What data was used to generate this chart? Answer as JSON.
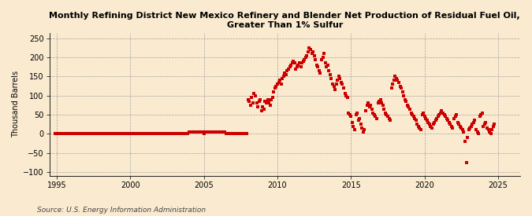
{
  "title": "Monthly Refining District New Mexico Refinery and Blender Net Production of Residual Fuel Oil,\nGreater Than 1% Sulfur",
  "ylabel": "Thousand Barrels",
  "source": "Source: U.S. Energy Information Administration",
  "xlim": [
    1994.5,
    2026.5
  ],
  "ylim": [
    -110,
    265
  ],
  "yticks": [
    -100,
    -50,
    0,
    50,
    100,
    150,
    200,
    250
  ],
  "xticks": [
    1995,
    2000,
    2005,
    2010,
    2015,
    2020,
    2025
  ],
  "background_color": "#faebd0",
  "marker_color": "#cc0000",
  "line_color": "#cc0000",
  "data": [
    [
      1994.917,
      0
    ],
    [
      1995.0,
      0
    ],
    [
      1995.083,
      0
    ],
    [
      1995.167,
      0
    ],
    [
      1995.25,
      0
    ],
    [
      1995.333,
      0
    ],
    [
      1995.417,
      0
    ],
    [
      1995.5,
      0
    ],
    [
      1995.583,
      0
    ],
    [
      1995.667,
      0
    ],
    [
      1995.75,
      0
    ],
    [
      1995.833,
      0
    ],
    [
      1995.917,
      0
    ],
    [
      1996.0,
      0
    ],
    [
      1996.083,
      0
    ],
    [
      1996.167,
      0
    ],
    [
      1996.25,
      0
    ],
    [
      1996.333,
      0
    ],
    [
      1996.417,
      0
    ],
    [
      1996.5,
      0
    ],
    [
      1996.583,
      0
    ],
    [
      1996.667,
      0
    ],
    [
      1996.75,
      0
    ],
    [
      1996.833,
      0
    ],
    [
      1996.917,
      0
    ],
    [
      1997.0,
      0
    ],
    [
      1997.083,
      0
    ],
    [
      1997.167,
      0
    ],
    [
      1997.25,
      0
    ],
    [
      1997.333,
      0
    ],
    [
      1997.417,
      0
    ],
    [
      1997.5,
      0
    ],
    [
      1997.583,
      0
    ],
    [
      1997.667,
      0
    ],
    [
      1997.75,
      0
    ],
    [
      1997.833,
      0
    ],
    [
      1997.917,
      0
    ],
    [
      1998.0,
      0
    ],
    [
      1998.083,
      0
    ],
    [
      1998.167,
      0
    ],
    [
      1998.25,
      0
    ],
    [
      1998.333,
      0
    ],
    [
      1998.417,
      0
    ],
    [
      1998.5,
      0
    ],
    [
      1998.583,
      0
    ],
    [
      1998.667,
      0
    ],
    [
      1998.75,
      0
    ],
    [
      1998.833,
      0
    ],
    [
      1998.917,
      0
    ],
    [
      1999.0,
      0
    ],
    [
      1999.083,
      0
    ],
    [
      1999.167,
      0
    ],
    [
      1999.25,
      0
    ],
    [
      1999.333,
      0
    ],
    [
      1999.417,
      0
    ],
    [
      1999.5,
      0
    ],
    [
      1999.583,
      0
    ],
    [
      1999.667,
      0
    ],
    [
      1999.75,
      0
    ],
    [
      1999.833,
      0
    ],
    [
      1999.917,
      0
    ],
    [
      2000.0,
      0
    ],
    [
      2000.083,
      0
    ],
    [
      2000.167,
      0
    ],
    [
      2000.25,
      0
    ],
    [
      2000.333,
      0
    ],
    [
      2000.417,
      0
    ],
    [
      2000.5,
      0
    ],
    [
      2000.583,
      0
    ],
    [
      2000.667,
      0
    ],
    [
      2000.75,
      0
    ],
    [
      2000.833,
      0
    ],
    [
      2000.917,
      0
    ],
    [
      2001.0,
      0
    ],
    [
      2001.083,
      0
    ],
    [
      2001.167,
      0
    ],
    [
      2001.25,
      0
    ],
    [
      2001.333,
      0
    ],
    [
      2001.417,
      0
    ],
    [
      2001.5,
      0
    ],
    [
      2001.583,
      0
    ],
    [
      2001.667,
      0
    ],
    [
      2001.75,
      0
    ],
    [
      2001.833,
      0
    ],
    [
      2001.917,
      0
    ],
    [
      2002.0,
      0
    ],
    [
      2002.083,
      0
    ],
    [
      2002.167,
      0
    ],
    [
      2002.25,
      0
    ],
    [
      2002.333,
      0
    ],
    [
      2002.417,
      0
    ],
    [
      2002.5,
      0
    ],
    [
      2002.583,
      0
    ],
    [
      2002.667,
      0
    ],
    [
      2002.75,
      0
    ],
    [
      2002.833,
      0
    ],
    [
      2002.917,
      0
    ],
    [
      2003.0,
      0
    ],
    [
      2003.083,
      0
    ],
    [
      2003.167,
      0
    ],
    [
      2003.25,
      0
    ],
    [
      2003.333,
      0
    ],
    [
      2003.417,
      0
    ],
    [
      2003.5,
      0
    ],
    [
      2003.583,
      0
    ],
    [
      2003.667,
      0
    ],
    [
      2003.75,
      0
    ],
    [
      2003.833,
      0
    ],
    [
      2003.917,
      0
    ],
    [
      2004.0,
      5
    ],
    [
      2004.083,
      5
    ],
    [
      2004.167,
      5
    ],
    [
      2004.25,
      5
    ],
    [
      2004.333,
      5
    ],
    [
      2004.417,
      5
    ],
    [
      2004.5,
      5
    ],
    [
      2004.583,
      5
    ],
    [
      2004.667,
      5
    ],
    [
      2004.75,
      5
    ],
    [
      2004.833,
      5
    ],
    [
      2004.917,
      5
    ],
    [
      2005.0,
      0
    ],
    [
      2005.083,
      5
    ],
    [
      2005.167,
      5
    ],
    [
      2005.25,
      5
    ],
    [
      2005.333,
      5
    ],
    [
      2005.417,
      5
    ],
    [
      2005.5,
      5
    ],
    [
      2005.583,
      5
    ],
    [
      2005.667,
      5
    ],
    [
      2005.75,
      5
    ],
    [
      2005.833,
      5
    ],
    [
      2005.917,
      5
    ],
    [
      2006.0,
      5
    ],
    [
      2006.083,
      5
    ],
    [
      2006.167,
      5
    ],
    [
      2006.25,
      5
    ],
    [
      2006.333,
      5
    ],
    [
      2006.417,
      5
    ],
    [
      2006.5,
      0
    ],
    [
      2006.583,
      0
    ],
    [
      2006.667,
      0
    ],
    [
      2006.75,
      0
    ],
    [
      2006.833,
      0
    ],
    [
      2006.917,
      0
    ],
    [
      2007.0,
      0
    ],
    [
      2007.083,
      0
    ],
    [
      2007.167,
      0
    ],
    [
      2007.25,
      0
    ],
    [
      2007.333,
      0
    ],
    [
      2007.417,
      0
    ],
    [
      2007.5,
      0
    ],
    [
      2007.583,
      0
    ],
    [
      2007.667,
      0
    ],
    [
      2007.75,
      0
    ],
    [
      2007.833,
      0
    ],
    [
      2007.917,
      0
    ],
    [
      2008.0,
      90
    ],
    [
      2008.083,
      85
    ],
    [
      2008.167,
      75
    ],
    [
      2008.25,
      95
    ],
    [
      2008.333,
      80
    ],
    [
      2008.417,
      105
    ],
    [
      2008.5,
      100
    ],
    [
      2008.583,
      80
    ],
    [
      2008.667,
      70
    ],
    [
      2008.75,
      85
    ],
    [
      2008.833,
      90
    ],
    [
      2008.917,
      60
    ],
    [
      2009.0,
      70
    ],
    [
      2009.083,
      65
    ],
    [
      2009.167,
      85
    ],
    [
      2009.25,
      80
    ],
    [
      2009.333,
      90
    ],
    [
      2009.417,
      80
    ],
    [
      2009.5,
      75
    ],
    [
      2009.583,
      90
    ],
    [
      2009.667,
      95
    ],
    [
      2009.75,
      110
    ],
    [
      2009.833,
      120
    ],
    [
      2009.917,
      125
    ],
    [
      2010.0,
      130
    ],
    [
      2010.083,
      135
    ],
    [
      2010.167,
      140
    ],
    [
      2010.25,
      130
    ],
    [
      2010.333,
      145
    ],
    [
      2010.417,
      150
    ],
    [
      2010.5,
      160
    ],
    [
      2010.583,
      155
    ],
    [
      2010.667,
      165
    ],
    [
      2010.75,
      170
    ],
    [
      2010.833,
      175
    ],
    [
      2010.917,
      180
    ],
    [
      2011.0,
      185
    ],
    [
      2011.083,
      190
    ],
    [
      2011.167,
      185
    ],
    [
      2011.25,
      170
    ],
    [
      2011.333,
      175
    ],
    [
      2011.417,
      180
    ],
    [
      2011.5,
      185
    ],
    [
      2011.583,
      175
    ],
    [
      2011.667,
      185
    ],
    [
      2011.75,
      190
    ],
    [
      2011.833,
      195
    ],
    [
      2011.917,
      200
    ],
    [
      2012.0,
      205
    ],
    [
      2012.083,
      215
    ],
    [
      2012.167,
      225
    ],
    [
      2012.25,
      220
    ],
    [
      2012.333,
      210
    ],
    [
      2012.417,
      215
    ],
    [
      2012.5,
      205
    ],
    [
      2012.583,
      195
    ],
    [
      2012.667,
      180
    ],
    [
      2012.75,
      175
    ],
    [
      2012.833,
      165
    ],
    [
      2012.917,
      160
    ],
    [
      2013.0,
      195
    ],
    [
      2013.083,
      200
    ],
    [
      2013.167,
      210
    ],
    [
      2013.25,
      185
    ],
    [
      2013.333,
      175
    ],
    [
      2013.417,
      180
    ],
    [
      2013.5,
      165
    ],
    [
      2013.583,
      155
    ],
    [
      2013.667,
      145
    ],
    [
      2013.75,
      130
    ],
    [
      2013.833,
      125
    ],
    [
      2013.917,
      115
    ],
    [
      2014.0,
      130
    ],
    [
      2014.083,
      140
    ],
    [
      2014.167,
      150
    ],
    [
      2014.25,
      145
    ],
    [
      2014.333,
      135
    ],
    [
      2014.417,
      130
    ],
    [
      2014.5,
      120
    ],
    [
      2014.583,
      105
    ],
    [
      2014.667,
      100
    ],
    [
      2014.75,
      95
    ],
    [
      2014.833,
      55
    ],
    [
      2014.917,
      50
    ],
    [
      2015.0,
      45
    ],
    [
      2015.083,
      30
    ],
    [
      2015.167,
      20
    ],
    [
      2015.25,
      10
    ],
    [
      2015.333,
      50
    ],
    [
      2015.417,
      55
    ],
    [
      2015.5,
      35
    ],
    [
      2015.583,
      40
    ],
    [
      2015.667,
      25
    ],
    [
      2015.75,
      15
    ],
    [
      2015.833,
      5
    ],
    [
      2015.917,
      10
    ],
    [
      2016.0,
      60
    ],
    [
      2016.083,
      75
    ],
    [
      2016.167,
      80
    ],
    [
      2016.25,
      70
    ],
    [
      2016.333,
      75
    ],
    [
      2016.417,
      65
    ],
    [
      2016.5,
      55
    ],
    [
      2016.583,
      50
    ],
    [
      2016.667,
      45
    ],
    [
      2016.75,
      40
    ],
    [
      2016.833,
      80
    ],
    [
      2016.917,
      85
    ],
    [
      2017.0,
      90
    ],
    [
      2017.083,
      80
    ],
    [
      2017.167,
      75
    ],
    [
      2017.25,
      65
    ],
    [
      2017.333,
      55
    ],
    [
      2017.417,
      50
    ],
    [
      2017.5,
      45
    ],
    [
      2017.583,
      40
    ],
    [
      2017.667,
      35
    ],
    [
      2017.75,
      120
    ],
    [
      2017.833,
      130
    ],
    [
      2017.917,
      140
    ],
    [
      2018.0,
      150
    ],
    [
      2018.083,
      145
    ],
    [
      2018.167,
      140
    ],
    [
      2018.25,
      135
    ],
    [
      2018.333,
      125
    ],
    [
      2018.417,
      120
    ],
    [
      2018.5,
      110
    ],
    [
      2018.583,
      100
    ],
    [
      2018.667,
      90
    ],
    [
      2018.75,
      85
    ],
    [
      2018.833,
      75
    ],
    [
      2018.917,
      70
    ],
    [
      2019.0,
      65
    ],
    [
      2019.083,
      55
    ],
    [
      2019.167,
      50
    ],
    [
      2019.25,
      45
    ],
    [
      2019.333,
      40
    ],
    [
      2019.417,
      35
    ],
    [
      2019.5,
      25
    ],
    [
      2019.583,
      20
    ],
    [
      2019.667,
      15
    ],
    [
      2019.75,
      10
    ],
    [
      2019.833,
      50
    ],
    [
      2019.917,
      55
    ],
    [
      2020.0,
      45
    ],
    [
      2020.083,
      40
    ],
    [
      2020.167,
      35
    ],
    [
      2020.25,
      30
    ],
    [
      2020.333,
      25
    ],
    [
      2020.417,
      20
    ],
    [
      2020.5,
      15
    ],
    [
      2020.583,
      25
    ],
    [
      2020.667,
      30
    ],
    [
      2020.75,
      35
    ],
    [
      2020.833,
      40
    ],
    [
      2020.917,
      45
    ],
    [
      2021.0,
      50
    ],
    [
      2021.083,
      55
    ],
    [
      2021.167,
      60
    ],
    [
      2021.25,
      55
    ],
    [
      2021.333,
      50
    ],
    [
      2021.417,
      45
    ],
    [
      2021.5,
      40
    ],
    [
      2021.583,
      35
    ],
    [
      2021.667,
      30
    ],
    [
      2021.75,
      25
    ],
    [
      2021.833,
      20
    ],
    [
      2021.917,
      15
    ],
    [
      2022.0,
      40
    ],
    [
      2022.083,
      45
    ],
    [
      2022.167,
      50
    ],
    [
      2022.25,
      30
    ],
    [
      2022.333,
      25
    ],
    [
      2022.417,
      20
    ],
    [
      2022.5,
      15
    ],
    [
      2022.583,
      10
    ],
    [
      2022.667,
      5
    ],
    [
      2022.75,
      -20
    ],
    [
      2022.833,
      -75
    ],
    [
      2022.917,
      -10
    ],
    [
      2023.0,
      10
    ],
    [
      2023.083,
      15
    ],
    [
      2023.167,
      20
    ],
    [
      2023.25,
      25
    ],
    [
      2023.333,
      30
    ],
    [
      2023.417,
      35
    ],
    [
      2023.5,
      10
    ],
    [
      2023.583,
      5
    ],
    [
      2023.667,
      0
    ],
    [
      2023.75,
      45
    ],
    [
      2023.833,
      50
    ],
    [
      2023.917,
      55
    ],
    [
      2024.0,
      20
    ],
    [
      2024.083,
      25
    ],
    [
      2024.167,
      30
    ],
    [
      2024.25,
      15
    ],
    [
      2024.333,
      10
    ],
    [
      2024.417,
      5
    ],
    [
      2024.5,
      0
    ],
    [
      2024.583,
      10
    ],
    [
      2024.667,
      20
    ],
    [
      2024.75,
      25
    ]
  ],
  "line_segment_end": 2007.917
}
